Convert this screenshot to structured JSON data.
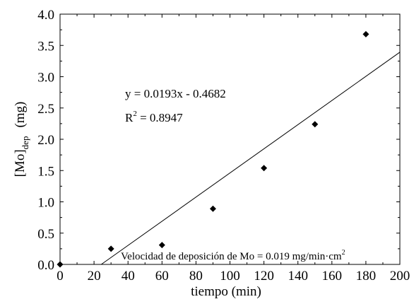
{
  "chart_data": {
    "type": "scatter",
    "xlabel": "tiempo (min)",
    "ylabel": {
      "main": "[Mo]",
      "subscript": "dep",
      "unit": "(mg)"
    },
    "xlim": [
      0,
      200
    ],
    "ylim": [
      0,
      4.0
    ],
    "x_ticks": [
      "0",
      "20",
      "40",
      "60",
      "80",
      "100",
      "120",
      "140",
      "160",
      "180",
      "200"
    ],
    "y_ticks": [
      "0.0",
      "0.5",
      "1.0",
      "1.5",
      "2.0",
      "2.5",
      "3.0",
      "3.5",
      "4.0"
    ],
    "grid": false,
    "points": [
      {
        "x": 0,
        "y": 0.0
      },
      {
        "x": 30,
        "y": 0.25
      },
      {
        "x": 60,
        "y": 0.31
      },
      {
        "x": 90,
        "y": 0.89
      },
      {
        "x": 120,
        "y": 1.54
      },
      {
        "x": 150,
        "y": 2.24
      },
      {
        "x": 180,
        "y": 3.68
      }
    ],
    "trendline": {
      "slope": 0.0193,
      "intercept": -0.4682
    },
    "annotations": {
      "equation": "y = 0.0193x - 0.4682",
      "r2_prefix": "R",
      "r2_sup": "2",
      "r2_value": " = 0.8947",
      "note_text": "Velocidad de deposición de Mo = 0.019 mg/min·cm",
      "note_sup": "2"
    }
  }
}
